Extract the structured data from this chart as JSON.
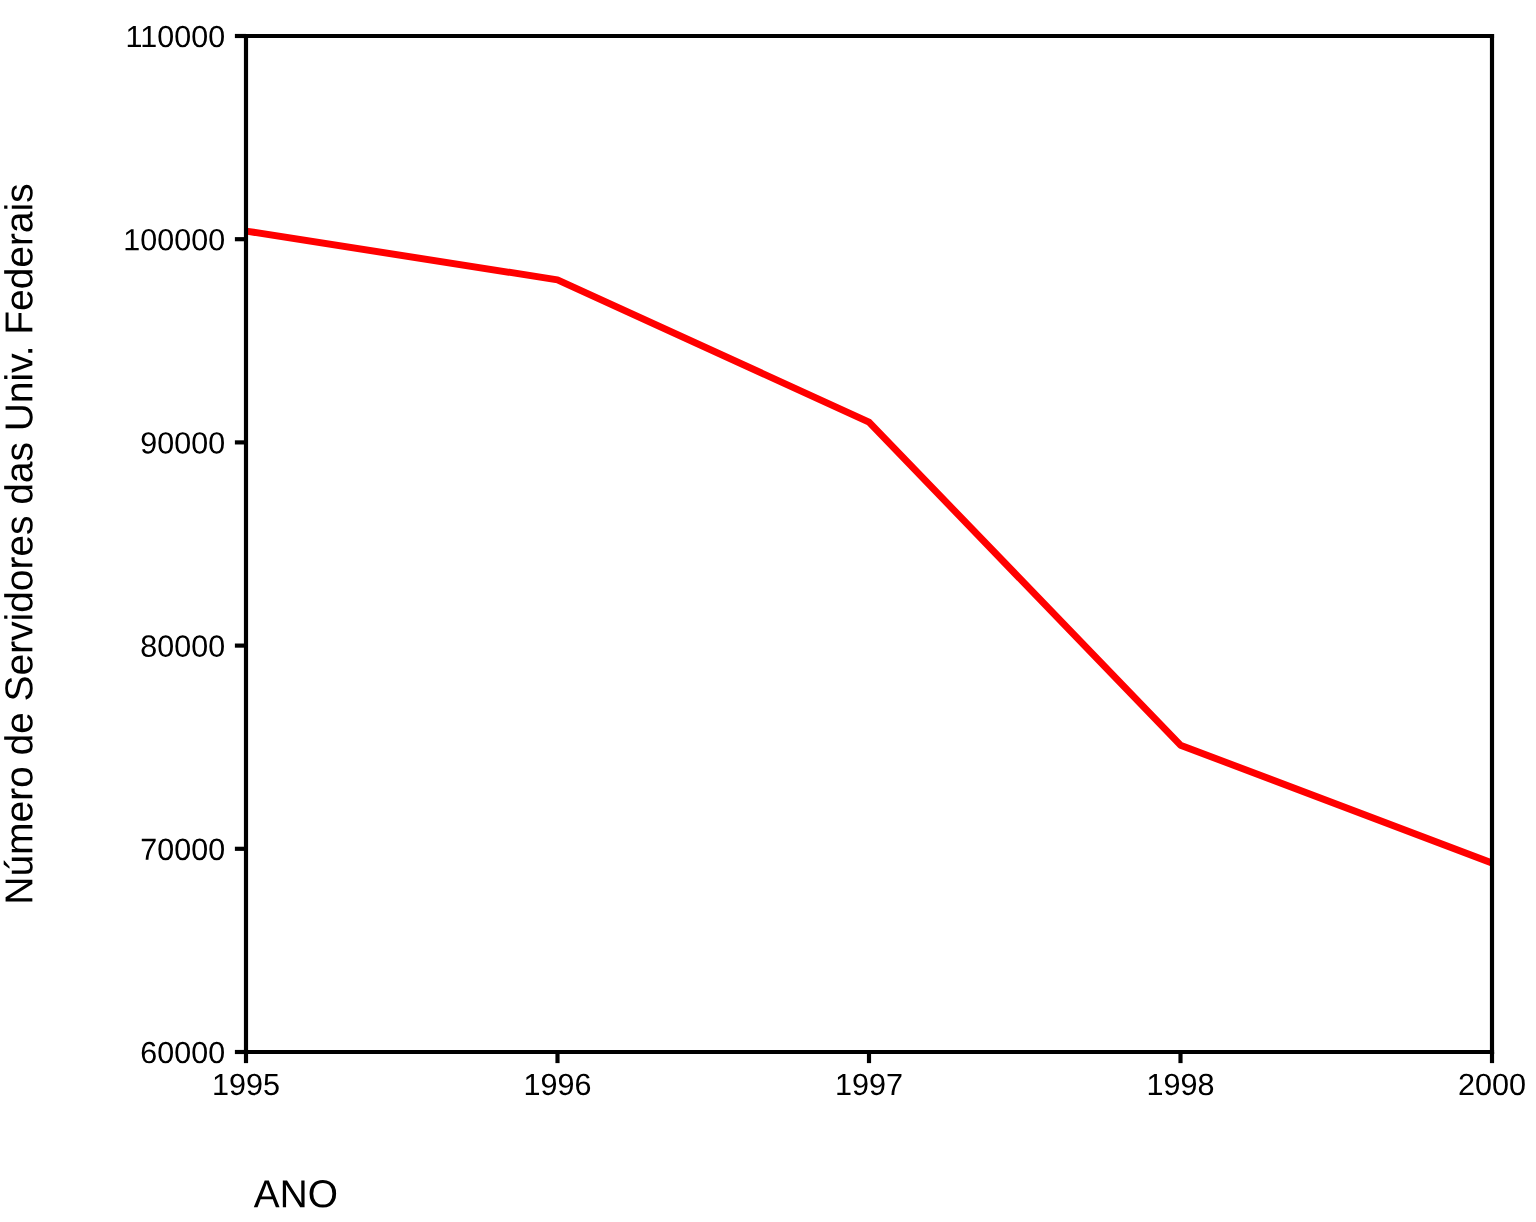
{
  "chart_data": {
    "type": "line",
    "xlabel": "ANO",
    "ylabel": "Número de Servidores das Univ. Federais",
    "categories": [
      "1995",
      "1996",
      "1997",
      "1998",
      "2000"
    ],
    "series": [
      {
        "color": "#ff0000",
        "values": [
          100400,
          98000,
          91000,
          75100,
          69300
        ]
      }
    ],
    "ylim": [
      60000,
      110000
    ],
    "yticks": [
      60000,
      70000,
      80000,
      90000,
      100000,
      110000
    ],
    "grid": false,
    "marker": "none",
    "line_style": "solid"
  }
}
